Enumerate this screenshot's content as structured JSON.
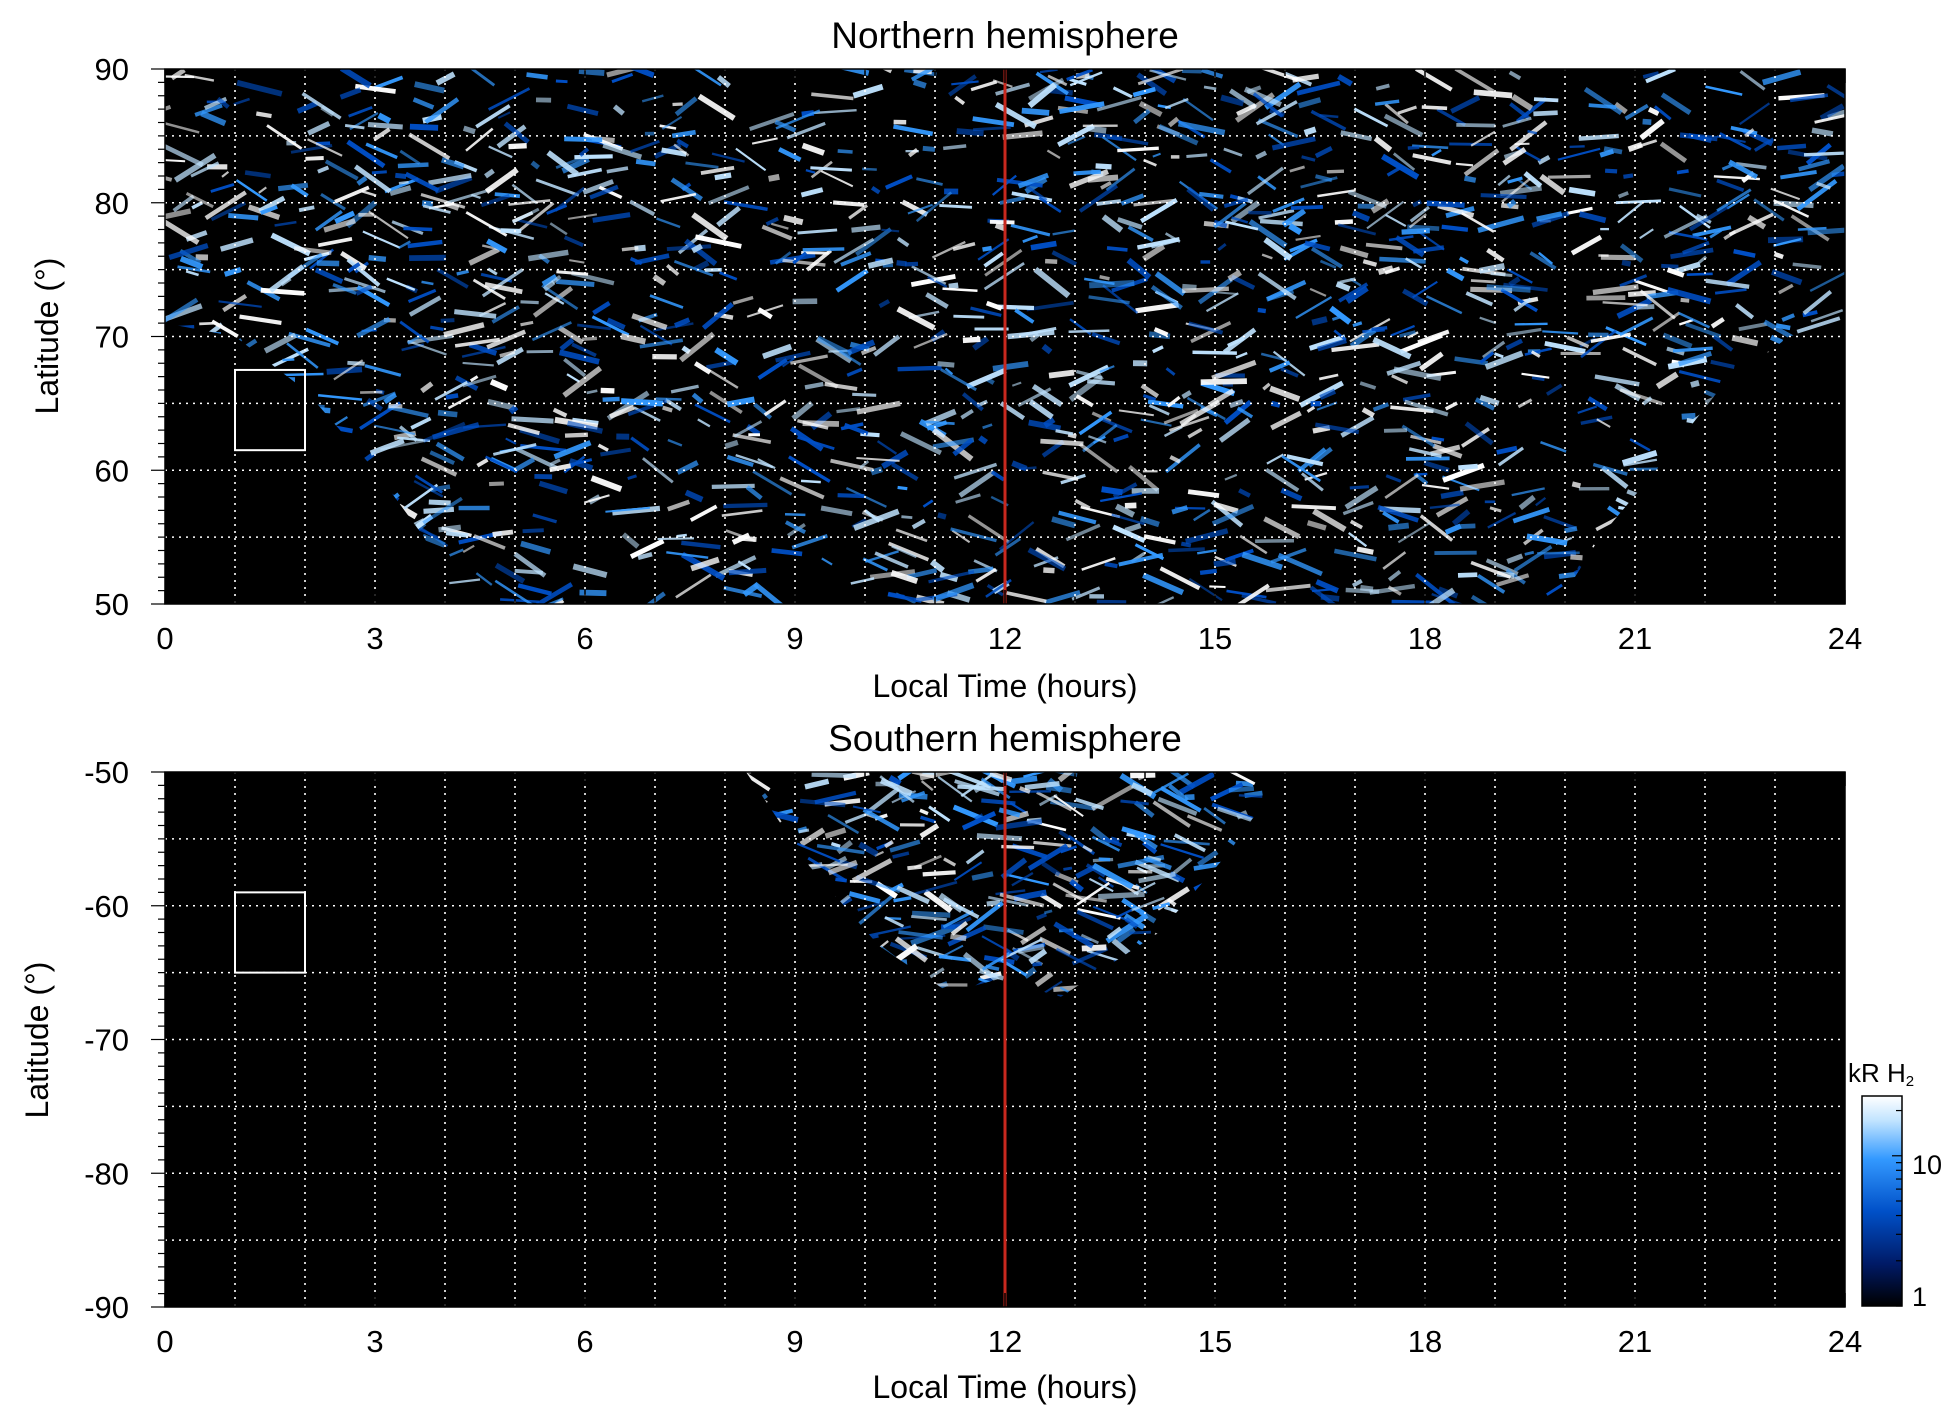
{
  "chart_data": [
    {
      "type": "heatmap",
      "title": "Northern hemisphere",
      "xlabel": "Local Time (hours)",
      "ylabel": "Latitude (°)",
      "xlim": [
        0,
        24
      ],
      "ylim": [
        50,
        90
      ],
      "xticks": [
        "0",
        "3",
        "6",
        "9",
        "12",
        "15",
        "18",
        "21",
        "24"
      ],
      "yticks": [
        "50",
        "60",
        "70",
        "80",
        "90"
      ],
      "grid": true,
      "marker_line_x": 12,
      "marker_line_color": "#c8281e",
      "box": {
        "x": [
          1,
          2
        ],
        "y": [
          61.5,
          67.5
        ]
      },
      "coverage_boundary": [
        {
          "x": 0,
          "y": 71
        },
        {
          "x": 1,
          "y": 70
        },
        {
          "x": 2,
          "y": 66
        },
        {
          "x": 3,
          "y": 60
        },
        {
          "x": 3.7,
          "y": 55
        },
        {
          "x": 4.2,
          "y": 50
        },
        {
          "x": 19.9,
          "y": 50
        },
        {
          "x": 20.5,
          "y": 55
        },
        {
          "x": 21.3,
          "y": 60
        },
        {
          "x": 22.2,
          "y": 66
        },
        {
          "x": 23.2,
          "y": 70
        },
        {
          "x": 24,
          "y": 71
        }
      ]
    },
    {
      "type": "heatmap",
      "title": "Southern hemisphere",
      "xlabel": "Local Time (hours)",
      "ylabel": "Latitude (°)",
      "xlim": [
        0,
        24
      ],
      "ylim": [
        -90,
        -50
      ],
      "xticks": [
        "0",
        "3",
        "6",
        "9",
        "12",
        "15",
        "18",
        "21",
        "24"
      ],
      "yticks": [
        "-50",
        "-60",
        "-70",
        "-80",
        "-90"
      ],
      "grid": true,
      "marker_line_x": 12,
      "marker_line_color": "#c8281e",
      "box": {
        "x": [
          1,
          2
        ],
        "y": [
          -65,
          -59
        ]
      },
      "coverage_boundary": [
        {
          "x": 8.3,
          "y": -50
        },
        {
          "x": 9.2,
          "y": -57
        },
        {
          "x": 10.2,
          "y": -63
        },
        {
          "x": 11.2,
          "y": -66.5
        },
        {
          "x": 11.9,
          "y": -65.5
        },
        {
          "x": 12.8,
          "y": -66.8
        },
        {
          "x": 14.2,
          "y": -62
        },
        {
          "x": 15.2,
          "y": -56
        },
        {
          "x": 16,
          "y": -50
        }
      ]
    }
  ],
  "colorbar": {
    "label_prefix": "kR H",
    "label_subscript": "2",
    "ticks": [
      "1",
      "10"
    ],
    "scale": "log",
    "colors": [
      "#000000",
      "#001a66",
      "#0050c8",
      "#3399ff",
      "#bfe3ff",
      "#ffffff"
    ]
  }
}
